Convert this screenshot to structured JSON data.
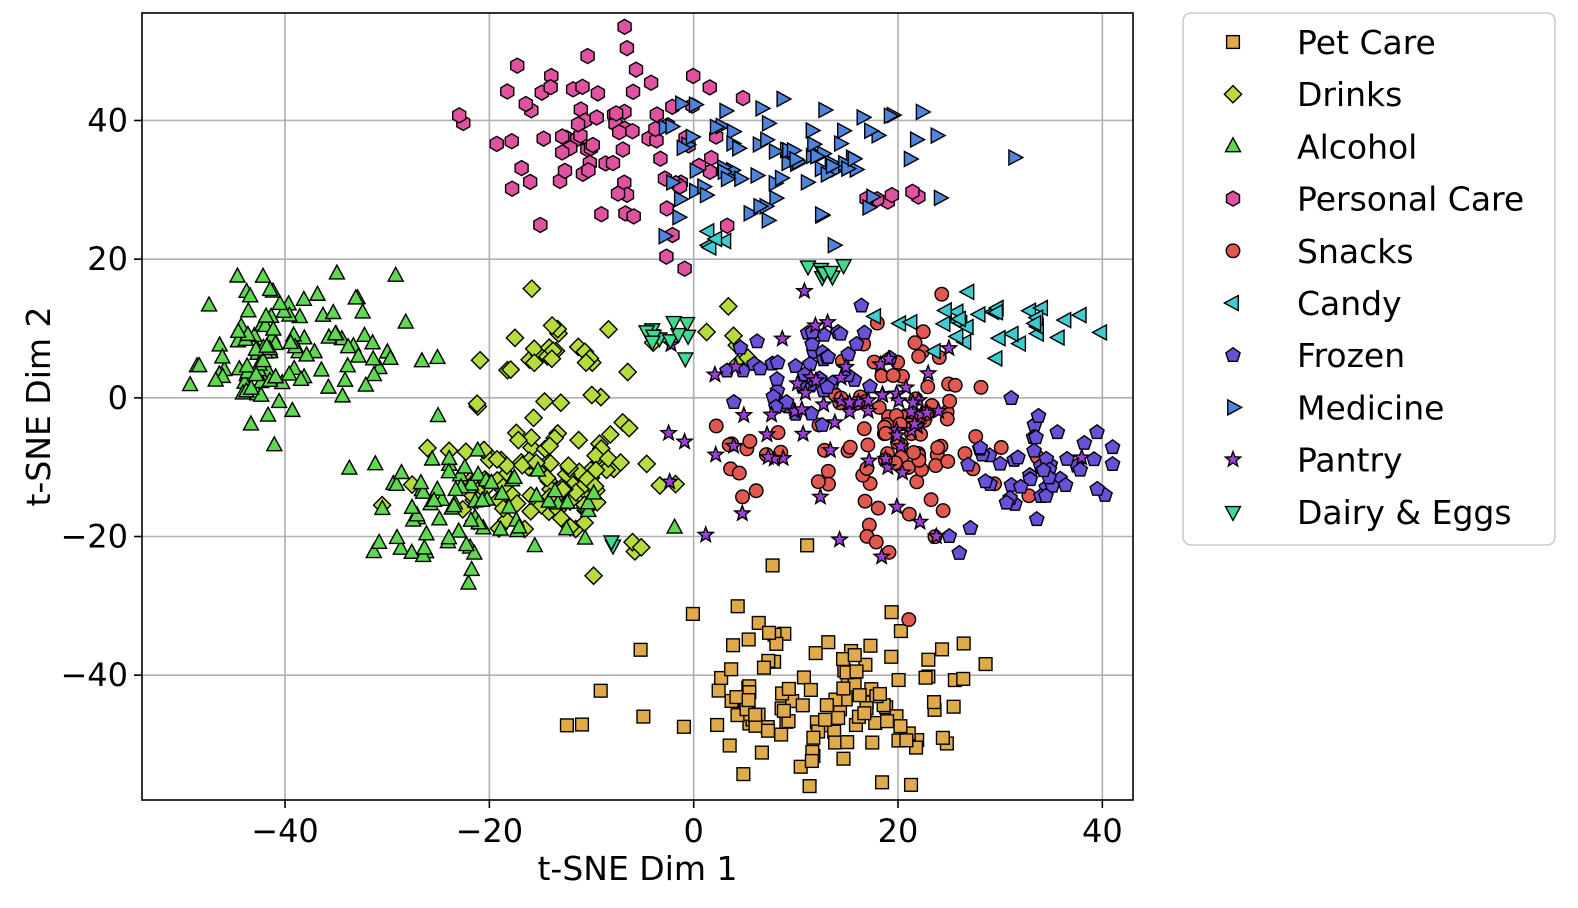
{
  "chart_data": {
    "type": "scatter",
    "title": "",
    "xlabel": "t-SNE Dim 1",
    "ylabel": "t-SNE Dim 2",
    "xlim": [
      -54,
      43
    ],
    "ylim": [
      -58,
      55.5
    ],
    "xticks": [
      -40,
      -20,
      0,
      20,
      40
    ],
    "yticks": [
      -40,
      -20,
      0,
      20,
      40
    ],
    "xtick_labels": [
      "−40",
      "−20",
      "0",
      "20",
      "40"
    ],
    "ytick_labels": [
      "−40",
      "−20",
      "0",
      "20",
      "40"
    ],
    "grid": true,
    "legend_position": "outside-right-top",
    "series": [
      {
        "name": "Pet Care",
        "marker": "square",
        "color": "#E0A94A",
        "clusters": [
          {
            "cx": 11,
            "cy": -43,
            "sx": 8.5,
            "sy": 7,
            "n": 130
          }
        ]
      },
      {
        "name": "Drinks",
        "marker": "diamond",
        "color": "#B5DC3C",
        "clusters": [
          {
            "cx": -15,
            "cy": -12,
            "sx": 6,
            "sy": 4.5,
            "n": 110
          },
          {
            "cx": -15,
            "cy": 6,
            "sx": 4,
            "sy": 4,
            "n": 30
          },
          {
            "cx": 4,
            "cy": 10,
            "sx": 1.5,
            "sy": 2,
            "n": 6
          }
        ]
      },
      {
        "name": "Alcohol",
        "marker": "triangle-up",
        "color": "#5ED94F",
        "clusters": [
          {
            "cx": -43,
            "cy": 5,
            "sx": 3.5,
            "sy": 4,
            "n": 60
          },
          {
            "cx": -38,
            "cy": 10,
            "sx": 4,
            "sy": 6,
            "n": 40
          },
          {
            "cx": -22,
            "cy": -16,
            "sx": 6,
            "sy": 5,
            "n": 80
          },
          {
            "cx": -32,
            "cy": 5,
            "sx": 3,
            "sy": 4,
            "n": 15
          }
        ]
      },
      {
        "name": "Personal Care",
        "marker": "hexagon",
        "color": "#E0529F",
        "clusters": [
          {
            "cx": -10,
            "cy": 36,
            "sx": 5,
            "sy": 6.5,
            "n": 70
          },
          {
            "cx": 0,
            "cy": 33,
            "sx": 3,
            "sy": 6,
            "n": 15
          },
          {
            "cx": 19,
            "cy": 29,
            "sx": 1.5,
            "sy": 0.7,
            "n": 6
          }
        ]
      },
      {
        "name": "Snacks",
        "marker": "circle",
        "color": "#E0584F",
        "clusters": [
          {
            "cx": 21,
            "cy": -5,
            "sx": 4,
            "sy": 8,
            "n": 95
          },
          {
            "cx": 7,
            "cy": -9,
            "sx": 3,
            "sy": 3,
            "n": 12
          }
        ]
      },
      {
        "name": "Candy",
        "marker": "triangle-left",
        "color": "#3FCBCF",
        "clusters": [
          {
            "cx": 28,
            "cy": 10,
            "sx": 4.5,
            "sy": 2,
            "n": 32
          },
          {
            "cx": 3,
            "cy": 23,
            "sx": 1.3,
            "sy": 0.8,
            "n": 5
          }
        ]
      },
      {
        "name": "Frozen",
        "marker": "pentagon",
        "color": "#6A4FD9",
        "clusters": [
          {
            "cx": 10,
            "cy": 3,
            "sx": 3.5,
            "sy": 3,
            "n": 40
          },
          {
            "cx": 33,
            "cy": -10,
            "sx": 4,
            "sy": 4.5,
            "n": 50
          },
          {
            "cx": 15,
            "cy": 8,
            "sx": 2,
            "sy": 2,
            "n": 8
          }
        ]
      },
      {
        "name": "Medicine",
        "marker": "triangle-right",
        "color": "#4E84DB",
        "clusters": [
          {
            "cx": 10,
            "cy": 35,
            "sx": 6,
            "sy": 5,
            "n": 80
          },
          {
            "cx": 20,
            "cy": 38,
            "sx": 1.5,
            "sy": 1.5,
            "n": 4
          }
        ]
      },
      {
        "name": "Pantry",
        "marker": "star",
        "color": "#9C3FD6",
        "clusters": [
          {
            "cx": 12,
            "cy": -5,
            "sx": 8,
            "sy": 8,
            "n": 55
          },
          {
            "cx": 20,
            "cy": -2,
            "sx": 3,
            "sy": 2,
            "n": 15
          }
        ]
      },
      {
        "name": "Dairy & Eggs",
        "marker": "triangle-down",
        "color": "#3FD98F",
        "clusters": [
          {
            "cx": -3,
            "cy": 9,
            "sx": 2.2,
            "sy": 1.5,
            "n": 12
          },
          {
            "cx": 13,
            "cy": 18,
            "sx": 1.2,
            "sy": 0.8,
            "n": 8
          },
          {
            "cx": -8,
            "cy": -22,
            "sx": 1,
            "sy": 1,
            "n": 2
          }
        ]
      }
    ]
  }
}
